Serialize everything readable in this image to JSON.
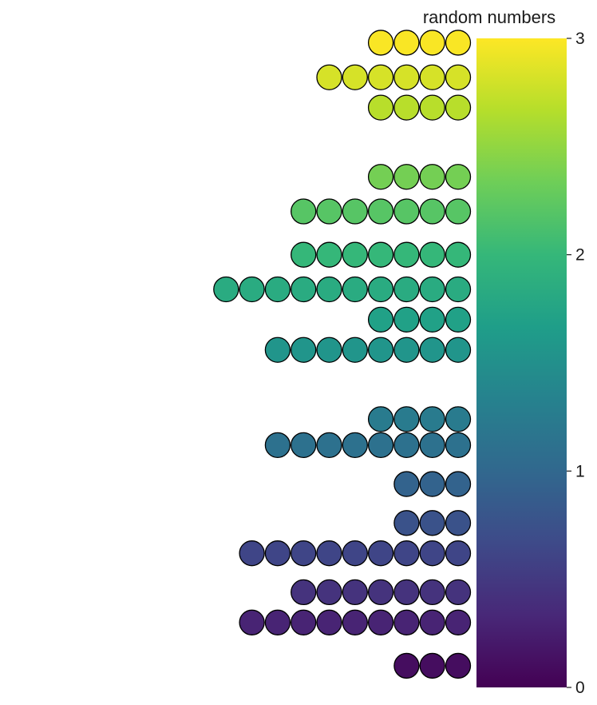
{
  "chart_data": {
    "type": "scatter",
    "subtype": "dotplot",
    "title": "",
    "xlabel": "",
    "ylabel": "",
    "stack_direction": "left",
    "ylim": [
      0,
      3
    ],
    "dot_stacks": [
      {
        "value": 2.98,
        "count": 4
      },
      {
        "value": 2.82,
        "count": 6
      },
      {
        "value": 2.68,
        "count": 4
      },
      {
        "value": 2.36,
        "count": 4
      },
      {
        "value": 2.2,
        "count": 7
      },
      {
        "value": 2.0,
        "count": 7
      },
      {
        "value": 1.84,
        "count": 10
      },
      {
        "value": 1.7,
        "count": 4
      },
      {
        "value": 1.56,
        "count": 8
      },
      {
        "value": 1.24,
        "count": 4
      },
      {
        "value": 1.12,
        "count": 8
      },
      {
        "value": 0.94,
        "count": 3
      },
      {
        "value": 0.76,
        "count": 3
      },
      {
        "value": 0.62,
        "count": 9
      },
      {
        "value": 0.44,
        "count": 7
      },
      {
        "value": 0.3,
        "count": 9
      },
      {
        "value": 0.1,
        "count": 3
      }
    ],
    "colorbar": {
      "title": "random numbers",
      "range": [
        0,
        3
      ],
      "ticks": [
        0,
        1,
        2,
        3
      ],
      "tick_labels": [
        "0",
        "1",
        "2",
        "3"
      ],
      "palette": "viridis",
      "colors": [
        "#440154",
        "#482878",
        "#3e4a89",
        "#31688e",
        "#26828e",
        "#1f9e89",
        "#35b779",
        "#6ece58",
        "#b5de2b",
        "#fde725"
      ]
    },
    "dot_outline_color": "#000000",
    "grid": false
  }
}
